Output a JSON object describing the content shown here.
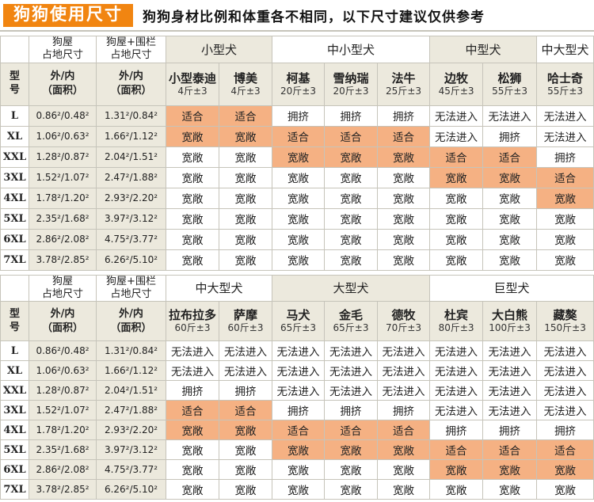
{
  "header": {
    "badge": "狗狗使用尺寸",
    "note": "狗狗身材比例和体重各不相同，以下尺寸建议仅供参考"
  },
  "colors": {
    "accent_orange": "#F18511",
    "highlight_orange": "#F5B183",
    "header_beige": "#ECE9DD",
    "border_gray": "#C6C4BA"
  },
  "labels": {
    "model": "型\n号",
    "house": "狗屋\n占地尺寸",
    "house_fence": "狗屋+围栏\n占地尺寸",
    "area": "外/内\n（面积）"
  },
  "status_terms": {
    "suitable": "适合",
    "spacious": "宽敞",
    "crowded": "拥挤",
    "no_entry": "无法进入"
  },
  "tables": [
    {
      "groups": [
        {
          "label": "小型犬",
          "span": 2,
          "shaded": true
        },
        {
          "label": "中小型犬",
          "span": 3,
          "shaded": false
        },
        {
          "label": "中型犬",
          "span": 2,
          "shaded": true
        },
        {
          "label": "中大型犬",
          "span": 1,
          "shaded": false
        }
      ],
      "breeds": [
        {
          "name": "小型泰迪",
          "weight": "4斤±3"
        },
        {
          "name": "博美",
          "weight": "4斤±3"
        },
        {
          "name": "柯基",
          "weight": "20斤±3"
        },
        {
          "name": "雪纳瑞",
          "weight": "20斤±3"
        },
        {
          "name": "法牛",
          "weight": "25斤±3"
        },
        {
          "name": "边牧",
          "weight": "45斤±3"
        },
        {
          "name": "松狮",
          "weight": "55斤±3"
        },
        {
          "name": "哈士奇",
          "weight": "55斤±3"
        }
      ],
      "rows": [
        {
          "model": "L",
          "house": "0.86²/0.48²",
          "fence": "1.31²/0.84²",
          "cells": [
            {
              "t": "适合",
              "hl": true
            },
            {
              "t": "适合",
              "hl": true
            },
            {
              "t": "拥挤",
              "hl": false
            },
            {
              "t": "拥挤",
              "hl": false
            },
            {
              "t": "拥挤",
              "hl": false
            },
            {
              "t": "无法进入",
              "hl": false
            },
            {
              "t": "无法进入",
              "hl": false
            },
            {
              "t": "无法进入",
              "hl": false
            }
          ]
        },
        {
          "model": "XL",
          "house": "1.06²/0.63²",
          "fence": "1.66²/1.12²",
          "cells": [
            {
              "t": "宽敞",
              "hl": true
            },
            {
              "t": "宽敞",
              "hl": true
            },
            {
              "t": "适合",
              "hl": true
            },
            {
              "t": "适合",
              "hl": true
            },
            {
              "t": "适合",
              "hl": true
            },
            {
              "t": "无法进入",
              "hl": false
            },
            {
              "t": "拥挤",
              "hl": false
            },
            {
              "t": "无法进入",
              "hl": false
            }
          ]
        },
        {
          "model": "XXL",
          "house": "1.28²/0.87²",
          "fence": "2.04²/1.51²",
          "cells": [
            {
              "t": "宽敞",
              "hl": false
            },
            {
              "t": "宽敞",
              "hl": false
            },
            {
              "t": "宽敞",
              "hl": true
            },
            {
              "t": "宽敞",
              "hl": true
            },
            {
              "t": "宽敞",
              "hl": true
            },
            {
              "t": "适合",
              "hl": true
            },
            {
              "t": "适合",
              "hl": true
            },
            {
              "t": "拥挤",
              "hl": false
            }
          ]
        },
        {
          "model": "3XL",
          "house": "1.52²/1.07²",
          "fence": "2.47²/1.88²",
          "cells": [
            {
              "t": "宽敞",
              "hl": false
            },
            {
              "t": "宽敞",
              "hl": false
            },
            {
              "t": "宽敞",
              "hl": false
            },
            {
              "t": "宽敞",
              "hl": false
            },
            {
              "t": "宽敞",
              "hl": false
            },
            {
              "t": "宽敞",
              "hl": true
            },
            {
              "t": "宽敞",
              "hl": true
            },
            {
              "t": "适合",
              "hl": true
            }
          ]
        },
        {
          "model": "4XL",
          "house": "1.78²/1.20²",
          "fence": "2.93²/2.20²",
          "cells": [
            {
              "t": "宽敞",
              "hl": false
            },
            {
              "t": "宽敞",
              "hl": false
            },
            {
              "t": "宽敞",
              "hl": false
            },
            {
              "t": "宽敞",
              "hl": false
            },
            {
              "t": "宽敞",
              "hl": false
            },
            {
              "t": "宽敞",
              "hl": false
            },
            {
              "t": "宽敞",
              "hl": false
            },
            {
              "t": "宽敞",
              "hl": true
            }
          ]
        },
        {
          "model": "5XL",
          "house": "2.35²/1.68²",
          "fence": "3.97²/3.12²",
          "cells": [
            {
              "t": "宽敞",
              "hl": false
            },
            {
              "t": "宽敞",
              "hl": false
            },
            {
              "t": "宽敞",
              "hl": false
            },
            {
              "t": "宽敞",
              "hl": false
            },
            {
              "t": "宽敞",
              "hl": false
            },
            {
              "t": "宽敞",
              "hl": false
            },
            {
              "t": "宽敞",
              "hl": false
            },
            {
              "t": "宽敞",
              "hl": false
            }
          ]
        },
        {
          "model": "6XL",
          "house": "2.86²/2.08²",
          "fence": "4.75²/3.77²",
          "cells": [
            {
              "t": "宽敞",
              "hl": false
            },
            {
              "t": "宽敞",
              "hl": false
            },
            {
              "t": "宽敞",
              "hl": false
            },
            {
              "t": "宽敞",
              "hl": false
            },
            {
              "t": "宽敞",
              "hl": false
            },
            {
              "t": "宽敞",
              "hl": false
            },
            {
              "t": "宽敞",
              "hl": false
            },
            {
              "t": "宽敞",
              "hl": false
            }
          ]
        },
        {
          "model": "7XL",
          "house": "3.78²/2.85²",
          "fence": "6.26²/5.10²",
          "cells": [
            {
              "t": "宽敞",
              "hl": false
            },
            {
              "t": "宽敞",
              "hl": false
            },
            {
              "t": "宽敞",
              "hl": false
            },
            {
              "t": "宽敞",
              "hl": false
            },
            {
              "t": "宽敞",
              "hl": false
            },
            {
              "t": "宽敞",
              "hl": false
            },
            {
              "t": "宽敞",
              "hl": false
            },
            {
              "t": "宽敞",
              "hl": false
            }
          ]
        }
      ]
    },
    {
      "groups": [
        {
          "label": "中大型犬",
          "span": 2,
          "shaded": false
        },
        {
          "label": "大型犬",
          "span": 3,
          "shaded": true
        },
        {
          "label": "巨型犬",
          "span": 3,
          "shaded": false
        }
      ],
      "breeds": [
        {
          "name": "拉布拉多",
          "weight": "60斤±3"
        },
        {
          "name": "萨摩",
          "weight": "60斤±3"
        },
        {
          "name": "马犬",
          "weight": "65斤±3"
        },
        {
          "name": "金毛",
          "weight": "65斤±3"
        },
        {
          "name": "德牧",
          "weight": "70斤±3"
        },
        {
          "name": "杜宾",
          "weight": "80斤±3"
        },
        {
          "name": "大白熊",
          "weight": "100斤±3"
        },
        {
          "name": "藏獒",
          "weight": "150斤±3"
        }
      ],
      "rows": [
        {
          "model": "L",
          "house": "0.86²/0.48²",
          "fence": "1.31²/0.84²",
          "cells": [
            {
              "t": "无法进入",
              "hl": false
            },
            {
              "t": "无法进入",
              "hl": false
            },
            {
              "t": "无法进入",
              "hl": false
            },
            {
              "t": "无法进入",
              "hl": false
            },
            {
              "t": "无法进入",
              "hl": false
            },
            {
              "t": "无法进入",
              "hl": false
            },
            {
              "t": "无法进入",
              "hl": false
            },
            {
              "t": "无法进入",
              "hl": false
            }
          ]
        },
        {
          "model": "XL",
          "house": "1.06²/0.63²",
          "fence": "1.66²/1.12²",
          "cells": [
            {
              "t": "无法进入",
              "hl": false
            },
            {
              "t": "无法进入",
              "hl": false
            },
            {
              "t": "无法进入",
              "hl": false
            },
            {
              "t": "无法进入",
              "hl": false
            },
            {
              "t": "无法进入",
              "hl": false
            },
            {
              "t": "无法进入",
              "hl": false
            },
            {
              "t": "无法进入",
              "hl": false
            },
            {
              "t": "无法进入",
              "hl": false
            }
          ]
        },
        {
          "model": "XXL",
          "house": "1.28²/0.87²",
          "fence": "2.04²/1.51²",
          "cells": [
            {
              "t": "拥挤",
              "hl": false
            },
            {
              "t": "拥挤",
              "hl": false
            },
            {
              "t": "无法进入",
              "hl": false
            },
            {
              "t": "无法进入",
              "hl": false
            },
            {
              "t": "无法进入",
              "hl": false
            },
            {
              "t": "无法进入",
              "hl": false
            },
            {
              "t": "无法进入",
              "hl": false
            },
            {
              "t": "无法进入",
              "hl": false
            }
          ]
        },
        {
          "model": "3XL",
          "house": "1.52²/1.07²",
          "fence": "2.47²/1.88²",
          "cells": [
            {
              "t": "适合",
              "hl": true
            },
            {
              "t": "适合",
              "hl": true
            },
            {
              "t": "拥挤",
              "hl": false
            },
            {
              "t": "拥挤",
              "hl": false
            },
            {
              "t": "拥挤",
              "hl": false
            },
            {
              "t": "无法进入",
              "hl": false
            },
            {
              "t": "无法进入",
              "hl": false
            },
            {
              "t": "无法进入",
              "hl": false
            }
          ]
        },
        {
          "model": "4XL",
          "house": "1.78²/1.20²",
          "fence": "2.93²/2.20²",
          "cells": [
            {
              "t": "宽敞",
              "hl": true
            },
            {
              "t": "宽敞",
              "hl": true
            },
            {
              "t": "适合",
              "hl": true
            },
            {
              "t": "适合",
              "hl": true
            },
            {
              "t": "适合",
              "hl": true
            },
            {
              "t": "拥挤",
              "hl": false
            },
            {
              "t": "拥挤",
              "hl": false
            },
            {
              "t": "拥挤",
              "hl": false
            }
          ]
        },
        {
          "model": "5XL",
          "house": "2.35²/1.68²",
          "fence": "3.97²/3.12²",
          "cells": [
            {
              "t": "宽敞",
              "hl": false
            },
            {
              "t": "宽敞",
              "hl": false
            },
            {
              "t": "宽敞",
              "hl": true
            },
            {
              "t": "宽敞",
              "hl": true
            },
            {
              "t": "宽敞",
              "hl": true
            },
            {
              "t": "适合",
              "hl": true
            },
            {
              "t": "适合",
              "hl": true
            },
            {
              "t": "适合",
              "hl": true
            }
          ]
        },
        {
          "model": "6XL",
          "house": "2.86²/2.08²",
          "fence": "4.75²/3.77²",
          "cells": [
            {
              "t": "宽敞",
              "hl": false
            },
            {
              "t": "宽敞",
              "hl": false
            },
            {
              "t": "宽敞",
              "hl": false
            },
            {
              "t": "宽敞",
              "hl": false
            },
            {
              "t": "宽敞",
              "hl": false
            },
            {
              "t": "宽敞",
              "hl": true
            },
            {
              "t": "宽敞",
              "hl": true
            },
            {
              "t": "宽敞",
              "hl": true
            }
          ]
        },
        {
          "model": "7XL",
          "house": "3.78²/2.85²",
          "fence": "6.26²/5.10²",
          "cells": [
            {
              "t": "宽敞",
              "hl": false
            },
            {
              "t": "宽敞",
              "hl": false
            },
            {
              "t": "宽敞",
              "hl": false
            },
            {
              "t": "宽敞",
              "hl": false
            },
            {
              "t": "宽敞",
              "hl": false
            },
            {
              "t": "宽敞",
              "hl": false
            },
            {
              "t": "宽敞",
              "hl": false
            },
            {
              "t": "宽敞",
              "hl": false
            }
          ]
        }
      ]
    }
  ]
}
